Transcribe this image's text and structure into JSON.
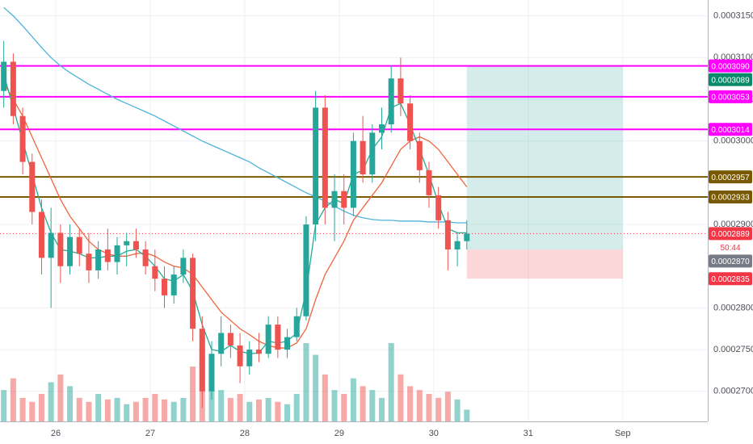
{
  "chart_data": {
    "type": "candlestick",
    "x": [
      25.45,
      25.55,
      25.65,
      25.75,
      25.85,
      25.95,
      26.05,
      26.15,
      26.25,
      26.35,
      26.45,
      26.55,
      26.65,
      26.75,
      26.85,
      26.95,
      27.05,
      27.15,
      27.25,
      27.35,
      27.45,
      27.55,
      27.65,
      27.75,
      27.85,
      27.95,
      28.05,
      28.15,
      28.25,
      28.35,
      28.45,
      28.55,
      28.65,
      28.75,
      28.85,
      28.95,
      29.05,
      29.15,
      29.25,
      29.35,
      29.45,
      29.55,
      29.65,
      29.75,
      29.85,
      29.95,
      30.05,
      30.15,
      30.25,
      30.35
    ],
    "open": [
      0.000306,
      0.0003095,
      0.000303,
      0.0002975,
      0.0002915,
      0.000286,
      0.000289,
      0.000285,
      0.0002885,
      0.0002865,
      0.0002845,
      0.000287,
      0.0002855,
      0.0002875,
      0.000288,
      0.000287,
      0.000285,
      0.0002835,
      0.0002815,
      0.000284,
      0.000286,
      0.0002775,
      0.00027,
      0.0002745,
      0.000277,
      0.0002755,
      0.000273,
      0.000275,
      0.0002745,
      0.000278,
      0.000275,
      0.0002765,
      0.000279,
      0.00029,
      0.000304,
      0.000292,
      0.000294,
      0.000292,
      0.0003,
      0.000296,
      0.000301,
      0.000302,
      0.0003075,
      0.0003045,
      0.0003,
      0.0002965,
      0.0002935,
      0.0002905,
      0.000287,
      0.000288
    ],
    "high": [
      0.000312,
      0.0003105,
      0.000304,
      0.0002985,
      0.000293,
      0.000292,
      0.00029,
      0.00029,
      0.0002895,
      0.000289,
      0.000288,
      0.0002895,
      0.0002885,
      0.000289,
      0.0002895,
      0.000288,
      0.000287,
      0.000285,
      0.000285,
      0.000287,
      0.0002865,
      0.000279,
      0.000276,
      0.000279,
      0.000278,
      0.000277,
      0.000276,
      0.000277,
      0.000279,
      0.000279,
      0.0002775,
      0.00028,
      0.000291,
      0.000306,
      0.0003055,
      0.000296,
      0.000296,
      0.000301,
      0.000303,
      0.000302,
      0.000304,
      0.000309,
      0.00031,
      0.0003055,
      0.000301,
      0.0002975,
      0.0002945,
      0.0002915,
      0.000289,
      0.0002905
    ],
    "low": [
      0.000304,
      0.000302,
      0.000296,
      0.00029,
      0.000284,
      0.00028,
      0.000283,
      0.000284,
      0.000285,
      0.000283,
      0.0002835,
      0.0002845,
      0.000284,
      0.000285,
      0.000286,
      0.000284,
      0.000282,
      0.00028,
      0.0002805,
      0.000283,
      0.000276,
      0.000268,
      0.000269,
      0.000273,
      0.000274,
      0.000271,
      0.000272,
      0.0002735,
      0.000274,
      0.000274,
      0.000274,
      0.000276,
      0.0002785,
      0.000288,
      0.00029,
      0.000288,
      0.00029,
      0.000291,
      0.000295,
      0.000295,
      0.000299,
      0.000301,
      0.000303,
      0.000299,
      0.000295,
      0.000292,
      0.0002895,
      0.0002845,
      0.000285,
      0.000287
    ],
    "close": [
      0.0003095,
      0.000303,
      0.0002975,
      0.0002915,
      0.000286,
      0.000289,
      0.000285,
      0.0002885,
      0.0002865,
      0.0002845,
      0.000287,
      0.0002855,
      0.0002875,
      0.000288,
      0.000287,
      0.000285,
      0.0002835,
      0.0002815,
      0.000284,
      0.000286,
      0.0002775,
      0.00027,
      0.0002745,
      0.000277,
      0.0002755,
      0.000273,
      0.000275,
      0.0002745,
      0.000278,
      0.000275,
      0.0002765,
      0.000279,
      0.00029,
      0.000304,
      0.000292,
      0.000294,
      0.000292,
      0.0003,
      0.000296,
      0.000301,
      0.000302,
      0.0003075,
      0.0003045,
      0.0003,
      0.0002965,
      0.0002935,
      0.0002905,
      0.000287,
      0.000288,
      0.0002889
    ],
    "volume": [
      40,
      55,
      30,
      25,
      35,
      50,
      60,
      45,
      30,
      25,
      35,
      28,
      30,
      22,
      25,
      30,
      35,
      28,
      25,
      30,
      70,
      95,
      45,
      40,
      30,
      35,
      25,
      28,
      30,
      25,
      22,
      35,
      100,
      85,
      60,
      40,
      35,
      55,
      45,
      40,
      30,
      100,
      60,
      45,
      40,
      35,
      30,
      38,
      28,
      15
    ],
    "colors": {
      "up": "#26a69a",
      "down": "#ef5350"
    },
    "indicators": [
      {
        "color": "#4fb3d9",
        "values": [
          0.000316,
          0.000315,
          0.0003138,
          0.0003125,
          0.0003112,
          0.00031,
          0.000309,
          0.0003082,
          0.0003075,
          0.0003068,
          0.0003062,
          0.0003056,
          0.000305,
          0.0003045,
          0.000304,
          0.0003035,
          0.000303,
          0.0003024,
          0.0003018,
          0.0003012,
          0.0003006,
          0.0003,
          0.0002995,
          0.000299,
          0.0002985,
          0.000298,
          0.0002975,
          0.0002968,
          0.0002962,
          0.0002956,
          0.000295,
          0.0002944,
          0.0002938,
          0.0002933,
          0.0002928,
          0.0002922,
          0.0002916,
          0.0002911,
          0.0002908,
          0.0002906,
          0.0002905,
          0.0002905,
          0.0002904,
          0.0002904,
          0.0002904,
          0.0002903,
          0.0002903,
          0.0002903,
          0.0002902,
          0.0002902
        ]
      },
      {
        "color": "#f0643c",
        "values": [
          0.000307,
          0.000305,
          0.000303,
          0.0003005,
          0.000298,
          0.0002955,
          0.000293,
          0.000291,
          0.0002895,
          0.000288,
          0.000287,
          0.0002865,
          0.0002862,
          0.0002862,
          0.0002865,
          0.0002866,
          0.0002862,
          0.0002855,
          0.000285,
          0.0002848,
          0.000284,
          0.0002825,
          0.000281,
          0.0002795,
          0.0002785,
          0.0002775,
          0.0002768,
          0.000276,
          0.0002755,
          0.0002752,
          0.0002752,
          0.0002758,
          0.0002775,
          0.000281,
          0.000284,
          0.000286,
          0.000288,
          0.0002905,
          0.000292,
          0.0002935,
          0.000295,
          0.000297,
          0.000299,
          0.0003,
          0.0003005,
          0.0003,
          0.000299,
          0.0002975,
          0.000296,
          0.0002945
        ]
      },
      {
        "color": "#22ab94",
        "values": [
          0.000308,
          0.000304,
          0.0003,
          0.000296,
          0.000292,
          0.000289,
          0.000287,
          0.0002868,
          0.0002865,
          0.000286,
          0.000286,
          0.0002862,
          0.0002862,
          0.0002868,
          0.000287,
          0.0002862,
          0.000285,
          0.0002835,
          0.0002832,
          0.000284,
          0.000282,
          0.000278,
          0.000275,
          0.0002748,
          0.0002755,
          0.0002748,
          0.0002745,
          0.0002746,
          0.000276,
          0.0002758,
          0.000276,
          0.000277,
          0.000282,
          0.00029,
          0.000292,
          0.000293,
          0.0002925,
          0.000296,
          0.0002965,
          0.000299,
          0.0003005,
          0.000304,
          0.0003045,
          0.000302,
          0.000299,
          0.000296,
          0.0002925,
          0.0002895,
          0.000289,
          0.000289
        ]
      }
    ],
    "tags": [
      {
        "value": 0.000309,
        "label": "0.0003090",
        "color": "#ff00ff",
        "line": "solid"
      },
      {
        "value": 0.0003089,
        "label": "0.0003089",
        "color": "#0a8a6a"
      },
      {
        "value": 0.0003053,
        "label": "0.0003053",
        "color": "#ff00ff",
        "line": "solid"
      },
      {
        "value": 0.0003014,
        "label": "0.0003014",
        "color": "#ff00ff",
        "line": "solid"
      },
      {
        "value": 0.0002957,
        "label": "0.0002957",
        "color": "#7a5a00",
        "line": "solid"
      },
      {
        "value": 0.0002933,
        "label": "0.0002933",
        "color": "#7a5a00",
        "line": "solid"
      },
      {
        "value": 0.0002889,
        "label": "0.0002889",
        "color": "#f23645",
        "line": "dotted",
        "countdown": "50:44"
      },
      {
        "value": 0.000287,
        "label": "0.0002870",
        "color": "#787b86"
      },
      {
        "value": 0.0002835,
        "label": "0.0002835",
        "color": "#f23645"
      }
    ],
    "position": {
      "x": [
        30.35,
        32
      ],
      "entry": 0.000287,
      "target": 0.000309,
      "stop": 0.0002835
    },
    "xlim": [
      25.41,
      32.9
    ],
    "ylim": [
      0.0002664,
      0.0003169
    ],
    "xticks": [
      26,
      27,
      28,
      29,
      30,
      31,
      {
        "value": 32,
        "label": "Sep"
      }
    ],
    "yticks": [
      {
        "value": 0.000315,
        "label": "0.0003150"
      },
      {
        "value": 0.00031,
        "label": "0.0003100"
      },
      {
        "value": 0.000305,
        "label": "0.0003050"
      },
      {
        "value": 0.0003,
        "label": "0.0003000"
      },
      {
        "value": 0.00029,
        "label": "0.0002900"
      },
      {
        "value": 0.00028,
        "label": "0.0002800"
      },
      {
        "value": 0.000275,
        "label": "0.0002750"
      },
      {
        "value": 0.00027,
        "label": "0.0002700"
      }
    ],
    "grid": true
  }
}
